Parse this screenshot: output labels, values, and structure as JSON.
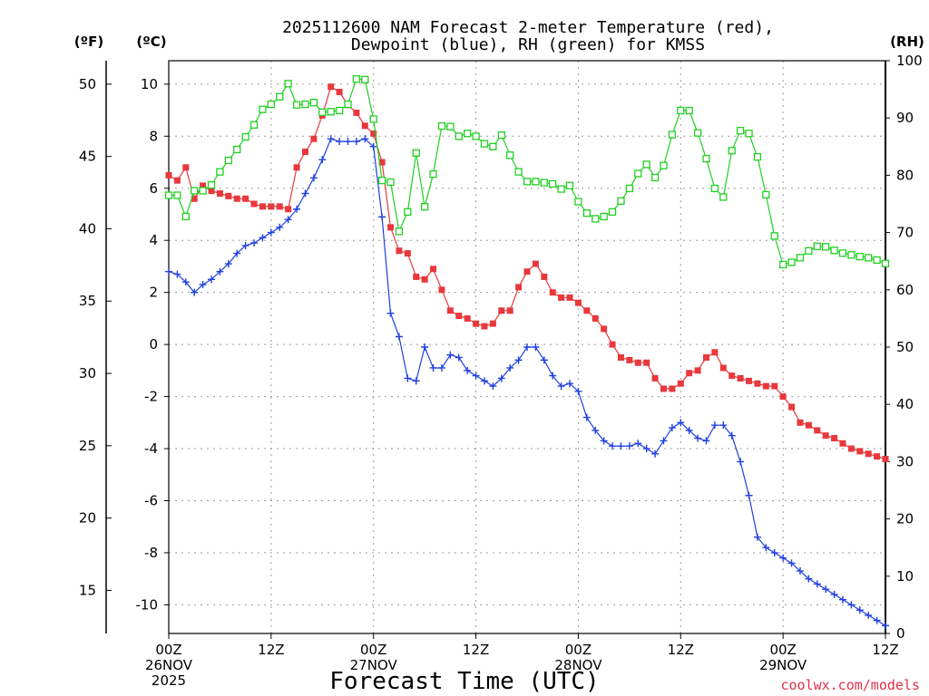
{
  "title_line1": "2025112600 NAM Forecast 2-meter Temperature (red),",
  "title_line2": "Dewpoint (blue), RH (green) for KMSS",
  "unit_f": "(ºF)",
  "unit_c": "(ºC)",
  "unit_rh": "(RH)",
  "credit": "coolwx.com/models",
  "colors": {
    "temperature": "#e8383c",
    "dewpoint": "#2040e0",
    "rh": "#20d020"
  },
  "chart_data": {
    "type": "line",
    "title": "2025112600 NAM Forecast 2-meter Temperature (red), Dewpoint (blue), RH (green) for KMSS",
    "xlabel": "Forecast Time (UTC)",
    "x_unit": "forecast hour",
    "x_range": [
      0,
      84
    ],
    "x_ticks": [
      {
        "hour": 0,
        "lines": [
          "00Z",
          "26NOV",
          "2025"
        ]
      },
      {
        "hour": 12,
        "lines": [
          "12Z"
        ]
      },
      {
        "hour": 24,
        "lines": [
          "00Z",
          "27NOV"
        ]
      },
      {
        "hour": 36,
        "lines": [
          "12Z"
        ]
      },
      {
        "hour": 48,
        "lines": [
          "00Z",
          "28NOV"
        ]
      },
      {
        "hour": 60,
        "lines": [
          "12Z"
        ]
      },
      {
        "hour": 72,
        "lines": [
          "00Z",
          "29NOV"
        ]
      },
      {
        "hour": 84,
        "lines": [
          "12Z"
        ]
      }
    ],
    "y_left_c": {
      "label": "(ºC)",
      "range": [
        -11.1,
        10.9
      ],
      "ticks": [
        10,
        8,
        6,
        4,
        2,
        0,
        -2,
        -4,
        -6,
        -8,
        -10
      ]
    },
    "y_left_f": {
      "label": "(ºF)",
      "ticks": [
        50,
        45,
        40,
        35,
        30,
        25,
        20,
        15
      ]
    },
    "y_right_rh": {
      "label": "(RH)",
      "range": [
        0,
        100
      ],
      "ticks": [
        100,
        90,
        80,
        70,
        60,
        50,
        40,
        30,
        20,
        10,
        0
      ]
    },
    "grid": true,
    "series": [
      {
        "key": "temperature",
        "axis": "c",
        "marker": "filled-square",
        "values": [
          6.5,
          6.3,
          6.8,
          5.6,
          6.1,
          5.9,
          5.8,
          5.7,
          5.6,
          5.6,
          5.4,
          5.3,
          5.3,
          5.3,
          5.2,
          6.8,
          7.4,
          7.9,
          8.8,
          9.9,
          9.7,
          9.2,
          8.9,
          8.4,
          8.1,
          7.0,
          4.5,
          3.6,
          3.5,
          2.6,
          2.5,
          2.9,
          2.1,
          1.3,
          1.1,
          1.0,
          0.8,
          0.7,
          0.8,
          1.3,
          1.3,
          2.2,
          2.8,
          3.1,
          2.6,
          2.0,
          1.8,
          1.8,
          1.6,
          1.3,
          1.0,
          0.6,
          0.0,
          -0.5,
          -0.6,
          -0.7,
          -0.7,
          -1.3,
          -1.7,
          -1.7,
          -1.5,
          -1.1,
          -1.0,
          -0.5,
          -0.3,
          -0.9,
          -1.2,
          -1.3,
          -1.4,
          -1.5,
          -1.6,
          -1.6,
          -2.0,
          -2.4,
          -3.0,
          -3.1,
          -3.3,
          -3.5,
          -3.6,
          -3.8,
          -4.0,
          -4.1,
          -4.2,
          -4.3,
          -4.4
        ]
      },
      {
        "key": "dewpoint",
        "axis": "c",
        "marker": "plus",
        "values": [
          2.8,
          2.7,
          2.4,
          2.0,
          2.3,
          2.5,
          2.8,
          3.1,
          3.5,
          3.8,
          3.9,
          4.1,
          4.3,
          4.5,
          4.8,
          5.2,
          5.8,
          6.4,
          7.1,
          7.9,
          7.8,
          7.8,
          7.8,
          7.9,
          7.6,
          4.9,
          1.2,
          0.3,
          -1.3,
          -1.4,
          -0.1,
          -0.9,
          -0.9,
          -0.4,
          -0.5,
          -1.0,
          -1.2,
          -1.4,
          -1.6,
          -1.3,
          -0.9,
          -0.6,
          -0.1,
          -0.1,
          -0.6,
          -1.2,
          -1.6,
          -1.5,
          -1.8,
          -2.8,
          -3.3,
          -3.7,
          -3.9,
          -3.9,
          -3.9,
          -3.8,
          -4.0,
          -4.2,
          -3.7,
          -3.2,
          -3.0,
          -3.3,
          -3.6,
          -3.7,
          -3.1,
          -3.1,
          -3.5,
          -4.5,
          -5.8,
          -7.4,
          -7.8,
          -8.0,
          -8.2,
          -8.4,
          -8.7,
          -9.0,
          -9.2,
          -9.4,
          -9.6,
          -9.8,
          -10.0,
          -10.2,
          -10.4,
          -10.6,
          -10.8
        ]
      },
      {
        "key": "rh",
        "axis": "rh",
        "marker": "open-square",
        "values": [
          76.5,
          76.5,
          72.8,
          77.3,
          77.3,
          78.3,
          80.6,
          82.6,
          84.5,
          86.7,
          88.8,
          91.5,
          92.4,
          93.7,
          96.0,
          92.3,
          92.4,
          92.7,
          91.0,
          91.1,
          91.3,
          92.4,
          96.8,
          96.7,
          89.8,
          79.1,
          78.8,
          70.2,
          73.6,
          83.9,
          74.5,
          80.2,
          88.6,
          88.5,
          86.8,
          87.3,
          86.8,
          85.5,
          85.0,
          87.0,
          83.5,
          80.6,
          78.9,
          78.9,
          78.7,
          78.5,
          77.6,
          78.2,
          75.4,
          73.4,
          72.4,
          72.8,
          73.6,
          75.5,
          77.7,
          80.3,
          81.9,
          79.6,
          81.7,
          87.1,
          91.3,
          91.3,
          87.4,
          82.9,
          77.7,
          76.2,
          84.3,
          87.8,
          87.3,
          83.2,
          76.6,
          69.4,
          64.4,
          64.8,
          65.6,
          66.8,
          67.6,
          67.5,
          66.9,
          66.4,
          66.1,
          65.8,
          65.6,
          65.2,
          64.6
        ]
      }
    ]
  }
}
